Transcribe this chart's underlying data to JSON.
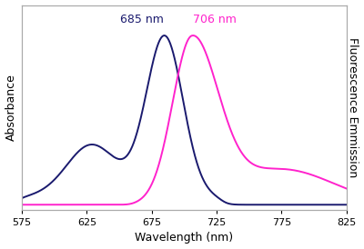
{
  "title": "",
  "xlabel": "Wavelength (nm)",
  "ylabel_left": "Absorbance",
  "ylabel_right": "Fluorescence Emmission",
  "x_min": 575,
  "x_max": 825,
  "x_ticks": [
    575,
    625,
    675,
    725,
    775,
    825
  ],
  "abs_peak_nm": 685,
  "abs_peak_label": "685 nm",
  "flu_peak_nm": 706,
  "flu_peak_label": "706 nm",
  "abs_color": "#1a1a6e",
  "flu_color": "#ff22cc",
  "background_color": "#ffffff",
  "label_fontsize": 9,
  "annotation_fontsize": 9,
  "tick_fontsize": 8
}
